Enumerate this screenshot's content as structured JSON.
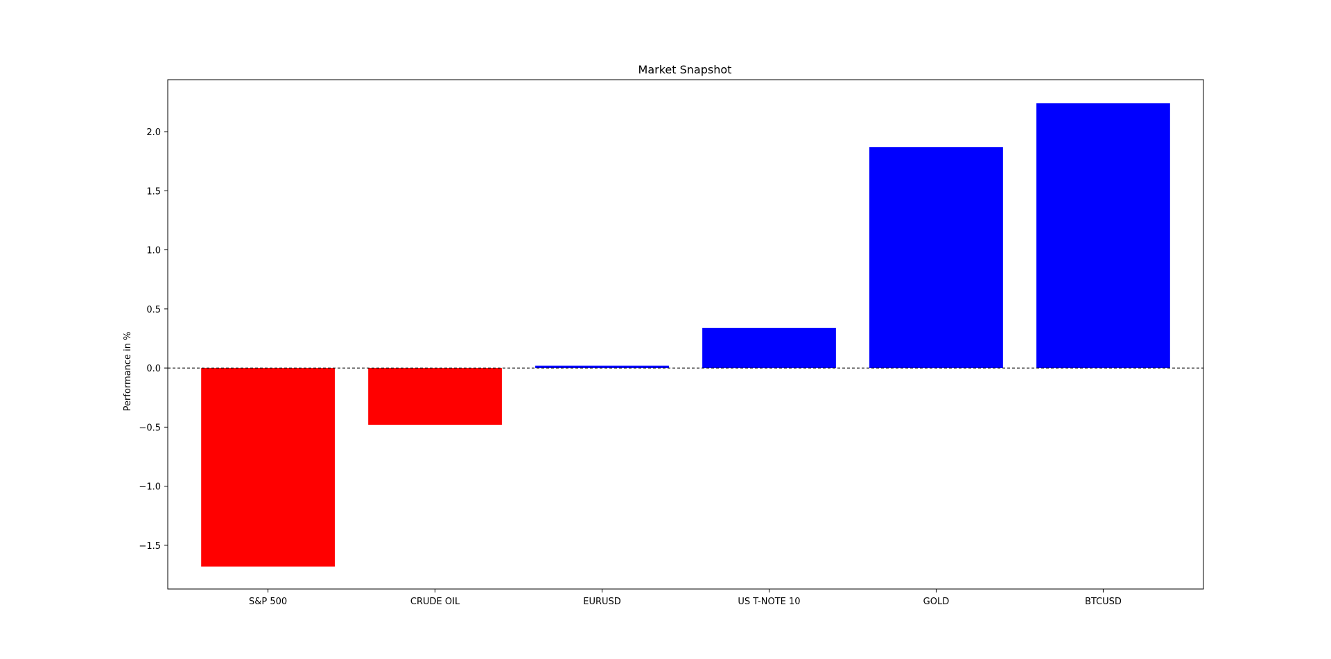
{
  "chart_data": {
    "type": "bar",
    "title": "Market Snapshot",
    "xlabel": "",
    "ylabel": "Performance in %",
    "categories": [
      "S&P 500",
      "CRUDE OIL",
      "EURUSD",
      "US T-NOTE 10",
      "GOLD",
      "BTCUSD"
    ],
    "values": [
      -1.68,
      -0.48,
      0.02,
      0.34,
      1.87,
      2.24
    ],
    "ylim": [
      -1.87,
      2.44
    ],
    "yticks": [
      -1.5,
      -1.0,
      -0.5,
      0.0,
      0.5,
      1.0,
      1.5,
      2.0
    ],
    "ytick_labels": [
      "−1.5",
      "−1.0",
      "−0.5",
      "0.0",
      "0.5",
      "1.0",
      "1.5",
      "2.0"
    ],
    "grid": false,
    "zero_line": "dashed",
    "colors": {
      "positive": "#0000ff",
      "negative": "#ff0000",
      "axis": "#000000",
      "background": "#ffffff"
    }
  }
}
